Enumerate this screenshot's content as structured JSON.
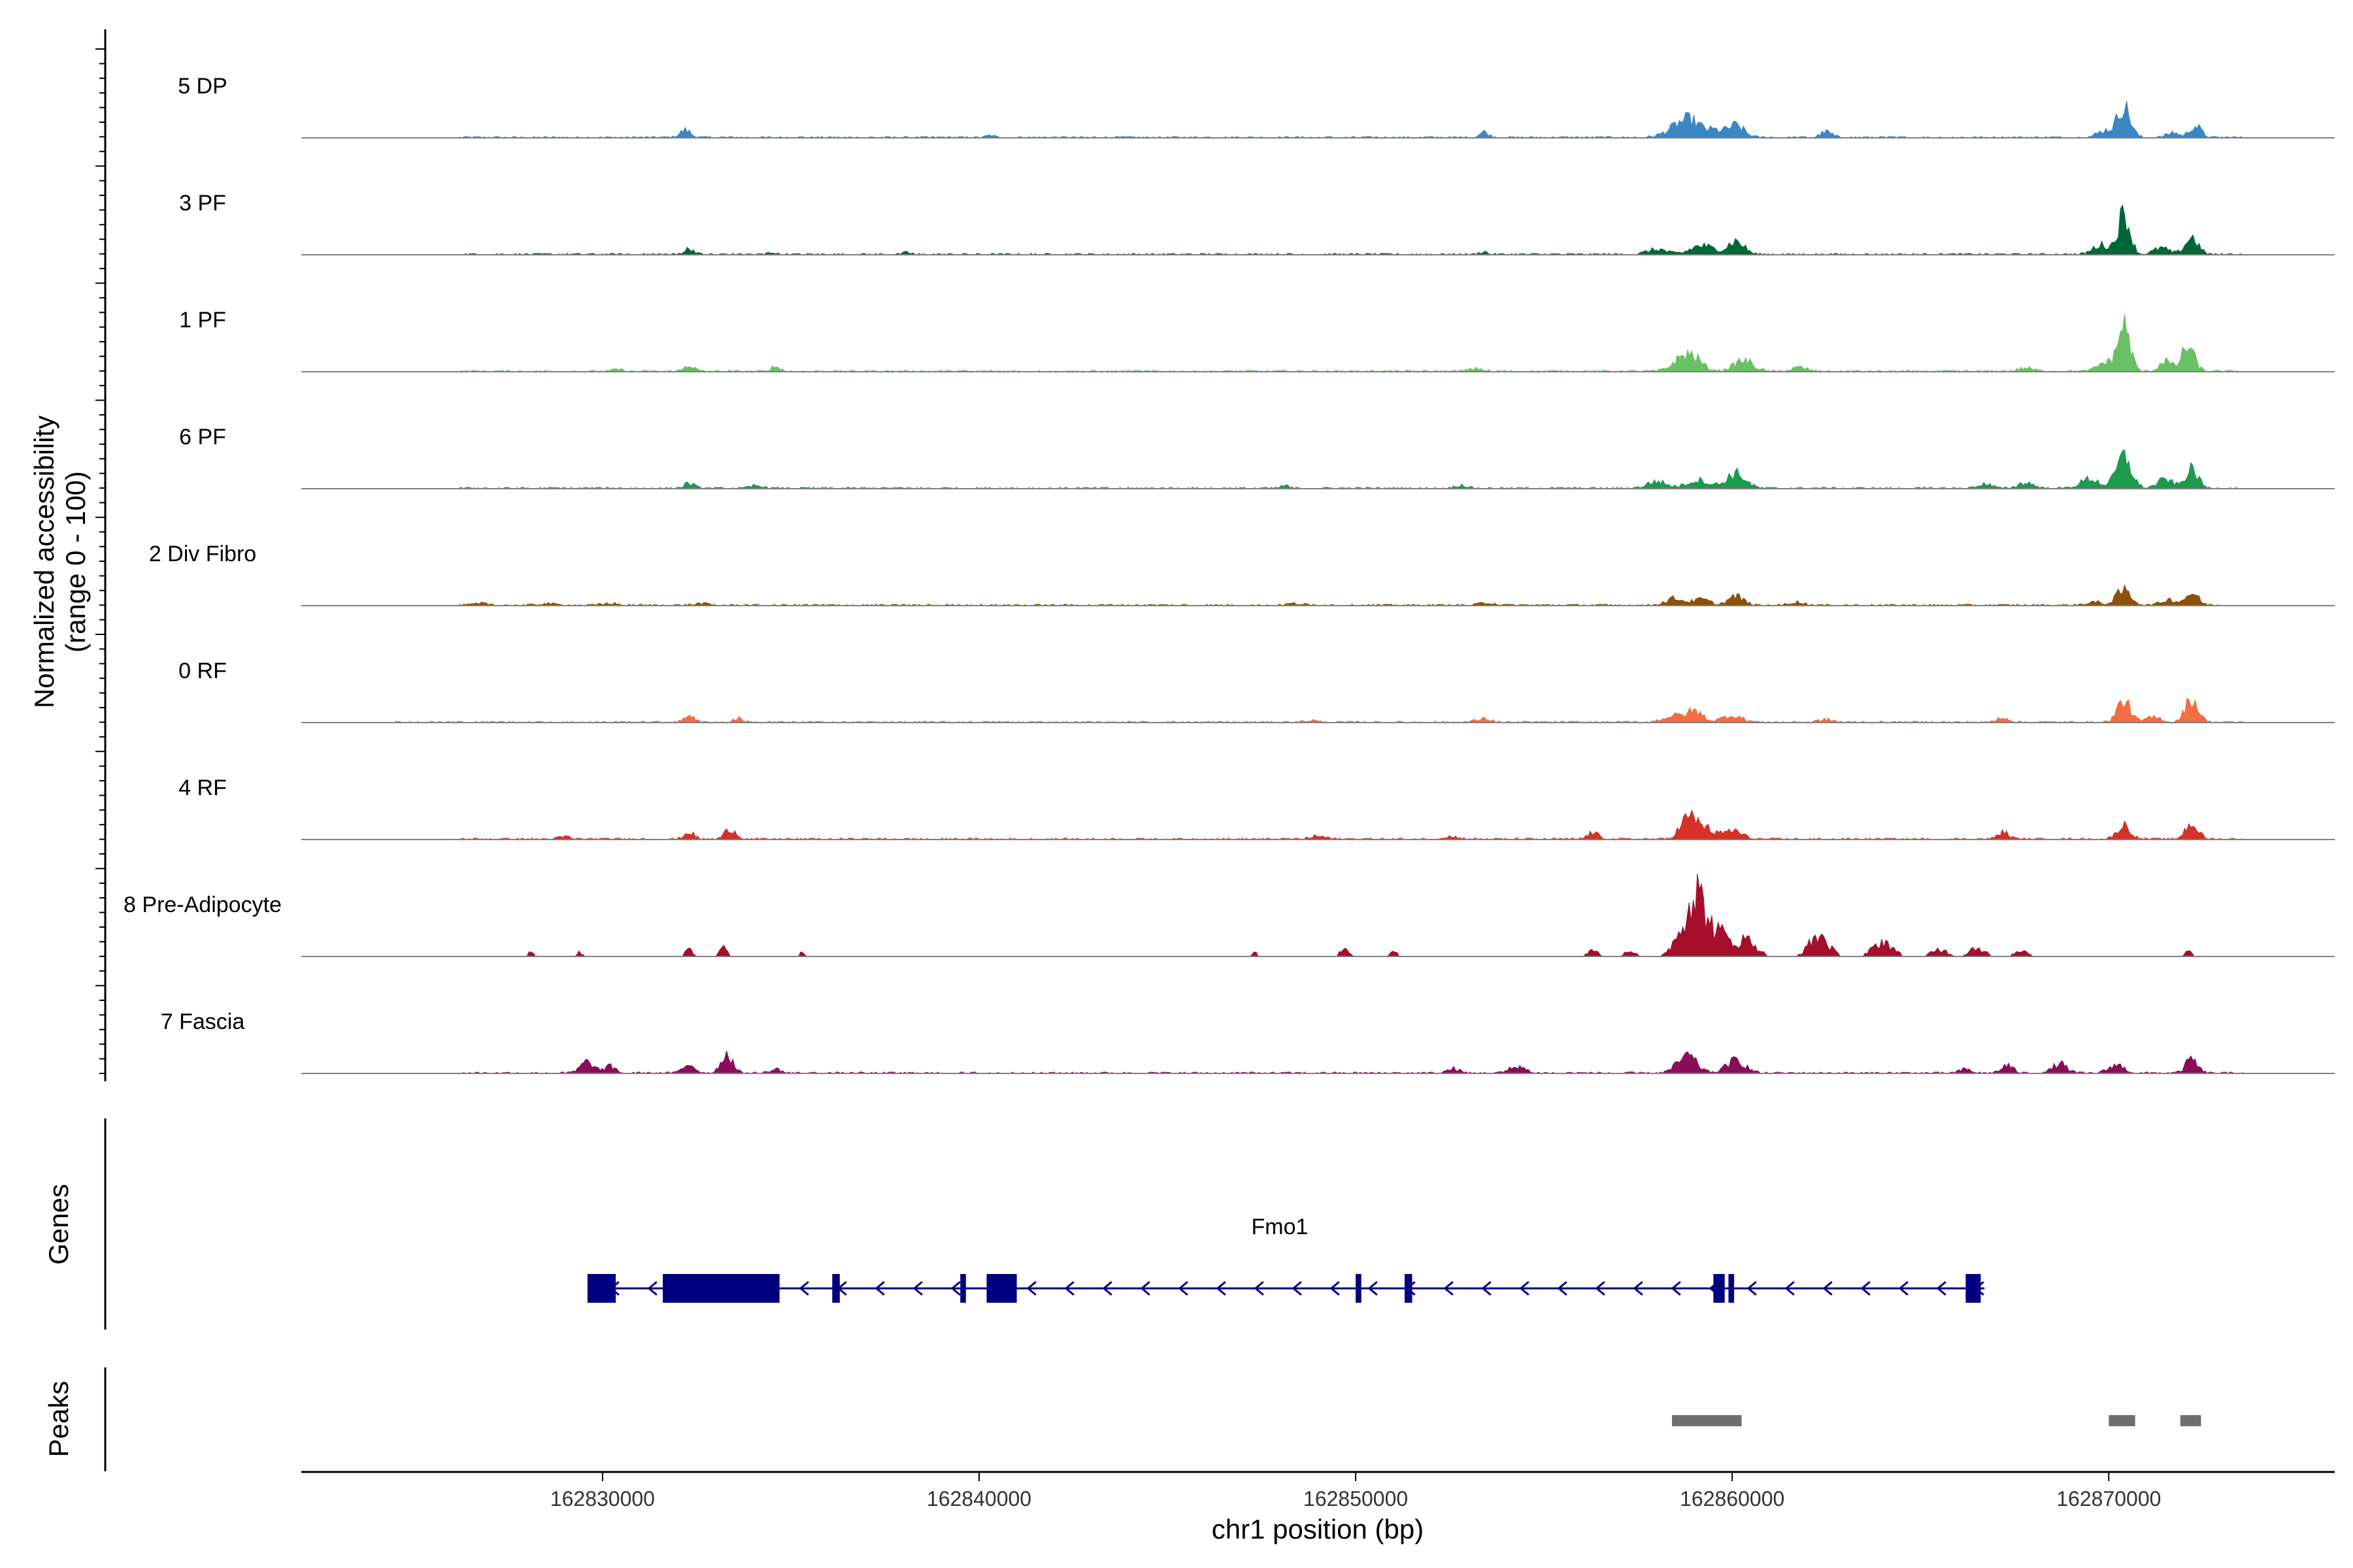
{
  "chart_data": {
    "type": "area",
    "ylabel_line1": "Normalized accessibility",
    "ylabel_line2": "(range 0 - 100)",
    "xlabel": "chr1 position (bp)",
    "xlim": [
      162822000,
      162876000
    ],
    "ylim": [
      0,
      100
    ],
    "x_ticks": [
      {
        "value": 162830000,
        "label": "162830000"
      },
      {
        "value": 162840000,
        "label": "162840000"
      },
      {
        "value": 162850000,
        "label": "162850000"
      },
      {
        "value": 162860000,
        "label": "162860000"
      },
      {
        "value": 162870000,
        "label": "162870000"
      }
    ],
    "series": [
      {
        "name": "5 DP",
        "color": "#3b87c4",
        "span": [
          162826200,
          162873600
        ],
        "peaks": [
          [
            162832200,
            24,
            140
          ],
          [
            162840300,
            6,
            100
          ],
          [
            162853400,
            18,
            120
          ],
          [
            162858500,
            28,
            300
          ],
          [
            162858900,
            45,
            250
          ],
          [
            162859500,
            22,
            250
          ],
          [
            162860100,
            38,
            220
          ],
          [
            162862500,
            18,
            150
          ],
          [
            162869900,
            22,
            200
          ],
          [
            162870400,
            100,
            170
          ],
          [
            162871700,
            16,
            150
          ],
          [
            162872300,
            38,
            150
          ]
        ]
      },
      {
        "name": "3 PF",
        "color": "#006837",
        "span": [
          162826200,
          162873600
        ],
        "peaks": [
          [
            162832300,
            18,
            130
          ],
          [
            162834500,
            7,
            100
          ],
          [
            162838100,
            6,
            100
          ],
          [
            162853400,
            8,
            100
          ],
          [
            162858000,
            16,
            250
          ],
          [
            162859200,
            28,
            300
          ],
          [
            162860100,
            42,
            220
          ],
          [
            162869800,
            30,
            220
          ],
          [
            162870400,
            130,
            160
          ],
          [
            162871400,
            20,
            200
          ],
          [
            162872200,
            55,
            170
          ]
        ]
      },
      {
        "name": "1 PF",
        "color": "#6ac065",
        "span": [
          162826200,
          162873600
        ],
        "peaks": [
          [
            162830400,
            6,
            120
          ],
          [
            162832300,
            20,
            130
          ],
          [
            162834600,
            16,
            120
          ],
          [
            162853200,
            8,
            200
          ],
          [
            162858600,
            28,
            250
          ],
          [
            162858950,
            42,
            250
          ],
          [
            162860300,
            35,
            250
          ],
          [
            162861800,
            12,
            200
          ],
          [
            162867800,
            10,
            200
          ],
          [
            162869900,
            28,
            200
          ],
          [
            162870400,
            150,
            160
          ],
          [
            162871500,
            35,
            150
          ],
          [
            162872100,
            80,
            170
          ]
        ]
      },
      {
        "name": "6 PF",
        "color": "#1b9a50",
        "span": [
          162826200,
          162873600
        ],
        "peaks": [
          [
            162832300,
            16,
            130
          ],
          [
            162834100,
            10,
            150
          ],
          [
            162848100,
            8,
            120
          ],
          [
            162852800,
            10,
            150
          ],
          [
            162858000,
            22,
            250
          ],
          [
            162859100,
            26,
            300
          ],
          [
            162860100,
            48,
            250
          ],
          [
            162866700,
            14,
            180
          ],
          [
            162867800,
            18,
            200
          ],
          [
            162869500,
            30,
            250
          ],
          [
            162870400,
            100,
            200
          ],
          [
            162871500,
            28,
            200
          ],
          [
            162872200,
            60,
            170
          ]
        ]
      },
      {
        "name": "2 Div Fibro",
        "color": "#8c510a",
        "span": [
          162826200,
          162873600
        ],
        "peaks": [
          [
            162826800,
            5,
            200
          ],
          [
            162828500,
            5,
            200
          ],
          [
            162830200,
            6,
            200
          ],
          [
            162832600,
            5,
            200
          ],
          [
            162848400,
            5,
            200
          ],
          [
            162853500,
            8,
            200
          ],
          [
            162858500,
            22,
            250
          ],
          [
            162859200,
            18,
            200
          ],
          [
            162860100,
            28,
            200
          ],
          [
            162861700,
            10,
            200
          ],
          [
            162869600,
            10,
            200
          ],
          [
            162870400,
            48,
            200
          ],
          [
            162871600,
            18,
            200
          ],
          [
            162872200,
            40,
            170
          ]
        ]
      },
      {
        "name": "0 RF",
        "color": "#f46d43",
        "span": [
          162824500,
          162873600
        ],
        "peaks": [
          [
            162832300,
            26,
            120
          ],
          [
            162833600,
            12,
            120
          ],
          [
            162848800,
            6,
            150
          ],
          [
            162853400,
            10,
            200
          ],
          [
            162858400,
            20,
            250
          ],
          [
            162859000,
            35,
            220
          ],
          [
            162860000,
            22,
            250
          ],
          [
            162862500,
            8,
            200
          ],
          [
            162867200,
            16,
            150
          ],
          [
            162870400,
            70,
            170
          ],
          [
            162871200,
            16,
            200
          ],
          [
            162872200,
            75,
            170
          ]
        ]
      },
      {
        "name": "4 RF",
        "color": "#d73027",
        "span": [
          162826200,
          162873600
        ],
        "peaks": [
          [
            162829000,
            8,
            150
          ],
          [
            162832300,
            22,
            130
          ],
          [
            162833400,
            32,
            150
          ],
          [
            162849000,
            10,
            200
          ],
          [
            162852500,
            8,
            200
          ],
          [
            162856300,
            20,
            150
          ],
          [
            162858800,
            60,
            200
          ],
          [
            162859200,
            40,
            250
          ],
          [
            162860000,
            28,
            250
          ],
          [
            162867200,
            22,
            150
          ],
          [
            162870400,
            45,
            170
          ],
          [
            162872200,
            50,
            170
          ]
        ]
      },
      {
        "name": "8 Pre-Adipocyte",
        "color": "#a50f2b",
        "span": [
          162828000,
          162872300
        ],
        "sparse": true,
        "peaks": [
          [
            162828100,
            14,
            80
          ],
          [
            162829400,
            14,
            80
          ],
          [
            162832300,
            22,
            100
          ],
          [
            162833200,
            28,
            100
          ],
          [
            162835300,
            12,
            80
          ],
          [
            162847300,
            14,
            80
          ],
          [
            162849700,
            38,
            100
          ],
          [
            162851000,
            20,
            80
          ],
          [
            162856300,
            22,
            150
          ],
          [
            162857300,
            20,
            150
          ],
          [
            162858800,
            90,
            300
          ],
          [
            162859100,
            150,
            250
          ],
          [
            162859700,
            70,
            250
          ],
          [
            162860400,
            55,
            250
          ],
          [
            162862300,
            70,
            250
          ],
          [
            162864000,
            50,
            250
          ],
          [
            162865500,
            25,
            200
          ],
          [
            162866500,
            30,
            200
          ],
          [
            162867700,
            20,
            180
          ],
          [
            162872100,
            22,
            80
          ]
        ]
      },
      {
        "name": "7 Fascia",
        "color": "#8b0c59",
        "span": [
          162826200,
          162873600
        ],
        "peaks": [
          [
            162829600,
            35,
            180
          ],
          [
            162830200,
            20,
            150
          ],
          [
            162832300,
            30,
            150
          ],
          [
            162833300,
            62,
            150
          ],
          [
            162834600,
            12,
            150
          ],
          [
            162852600,
            14,
            150
          ],
          [
            162854300,
            22,
            200
          ],
          [
            162858800,
            55,
            250
          ],
          [
            162860100,
            40,
            250
          ],
          [
            162866200,
            12,
            150
          ],
          [
            162867300,
            25,
            150
          ],
          [
            162868700,
            30,
            180
          ],
          [
            162870200,
            26,
            200
          ],
          [
            162872200,
            45,
            150
          ]
        ]
      }
    ],
    "genes_label": "Genes",
    "gene": {
      "name": "Fmo1",
      "color": "#000080",
      "start": 162829600,
      "end": 162866700,
      "strand": "-",
      "exons": [
        [
          162829600,
          162830350
        ],
        [
          162831600,
          162834700
        ],
        [
          162836100,
          162836300
        ],
        [
          162839500,
          162839650
        ],
        [
          162840200,
          162841000
        ],
        [
          162850000,
          162850150
        ],
        [
          162851300,
          162851500
        ],
        [
          162859500,
          162859800
        ],
        [
          162859900,
          162860050
        ],
        [
          162866200,
          162866600
        ]
      ]
    },
    "peaks_label": "Peaks",
    "peak_regions": [
      [
        162858400,
        162860250
      ],
      [
        162870000,
        162870700
      ],
      [
        162871900,
        162872450
      ]
    ],
    "peak_color": "#6e6e6e"
  }
}
